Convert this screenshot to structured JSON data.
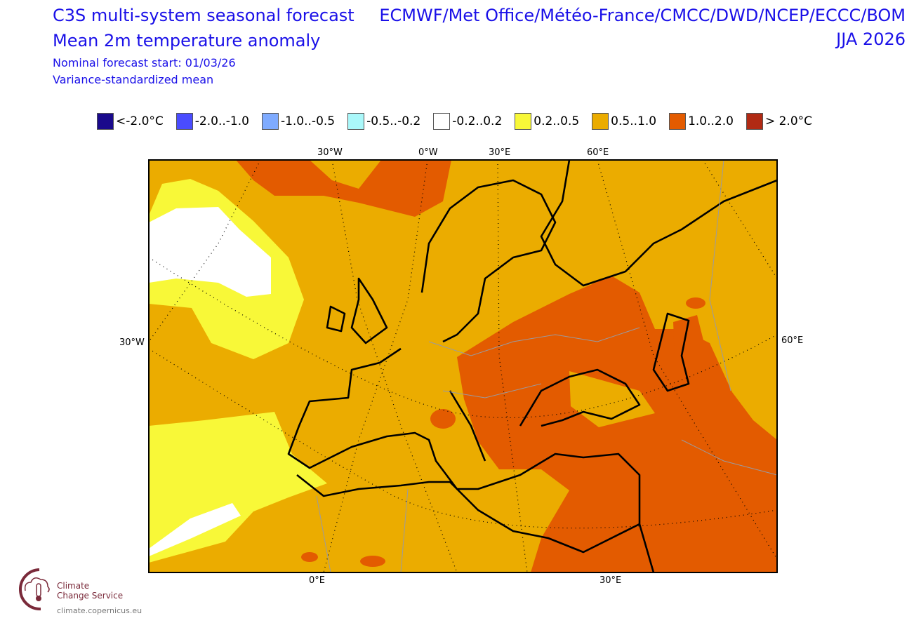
{
  "header": {
    "title_line1": "C3S multi-system seasonal forecast",
    "title_line2": "Mean 2m temperature anomaly",
    "forecast_start": "Nominal forecast start: 01/03/26",
    "method": "Variance-standardized mean",
    "systems": "ECMWF/Met Office/Météo-France/CMCC/DWD/NCEP/ECCC/BOM",
    "season": "JJA 2026"
  },
  "legend": [
    {
      "label": "<-2.0°C",
      "color": "#1a0a8c"
    },
    {
      "label": "-2.0..-1.0",
      "color": "#4a4cff"
    },
    {
      "label": "-1.0..-0.5",
      "color": "#7fabff"
    },
    {
      "label": "-0.5..-0.2",
      "color": "#aaf8fa"
    },
    {
      "label": "-0.2..0.2",
      "color": "#ffffff"
    },
    {
      "label": "0.2..0.5",
      "color": "#f8f838"
    },
    {
      "label": "0.5..1.0",
      "color": "#ebac00"
    },
    {
      "label": "1.0..2.0",
      "color": "#e35b00"
    },
    {
      "label": "> 2.0°C",
      "color": "#b12a14"
    }
  ],
  "axes": {
    "top": [
      "30°W",
      "0°W",
      "30°E",
      "60°E"
    ],
    "left": "30°W",
    "right": "60°E",
    "bottom": [
      "0°E",
      "30°E"
    ]
  },
  "logo": {
    "line1": "Climate",
    "line2": "Change Service",
    "url": "climate.copernicus.eu"
  }
}
